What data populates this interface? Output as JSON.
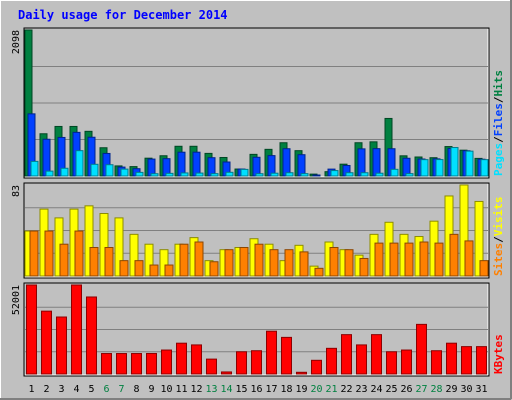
{
  "chart_data": {
    "type": "bar",
    "title": "Daily usage for December 2014",
    "categories": [
      "1",
      "2",
      "3",
      "4",
      "5",
      "6",
      "7",
      "8",
      "9",
      "10",
      "11",
      "12",
      "13",
      "14",
      "15",
      "16",
      "17",
      "18",
      "19",
      "20",
      "21",
      "22",
      "23",
      "24",
      "25",
      "26",
      "27",
      "28",
      "29",
      "30",
      "31"
    ],
    "weekend_days": [
      "6",
      "7",
      "13",
      "14",
      "20",
      "21",
      "27",
      "28"
    ],
    "panels": [
      {
        "id": "hits-files-pages",
        "ymax_label": "2098",
        "ymax": 2098,
        "series": [
          {
            "name": "Hits",
            "color": "#008040",
            "values": [
              2098,
              607,
              712,
              712,
              642,
              406,
              145,
              135,
              256,
              291,
              427,
              427,
              325,
              266,
              100,
              311,
              383,
              478,
              364,
              27,
              62,
              170,
              478,
              491,
              827,
              290,
              273,
              263,
              423,
              371,
              253
            ]
          },
          {
            "name": "Files",
            "color": "#0040ff",
            "values": [
              893,
              528,
              554,
              627,
              557,
              324,
              128,
              105,
              243,
              249,
              342,
              342,
              263,
              201,
              100,
              269,
              293,
              392,
              306,
              14,
              99,
              151,
              390,
              393,
              392,
              255,
              244,
              246,
              395,
              363,
              241
            ]
          },
          {
            "name": "Pages",
            "color": "#00e0ff",
            "values": [
              210,
              70,
              111,
              364,
              168,
              162,
              99,
              52,
              33,
              38,
              44,
              42,
              34,
              53,
              95,
              33,
              40,
              47,
              34,
              0,
              78,
              47,
              47,
              40,
              96,
              34,
              235,
              236,
              409,
              357,
              235
            ]
          }
        ]
      },
      {
        "id": "visits-sites",
        "ymax_label": "83",
        "ymax": 83,
        "series": [
          {
            "name": "Visits",
            "color": "#ffff00",
            "values": [
              41,
              61,
              53,
              61,
              64,
              57,
              53,
              38,
              29,
              24,
              29,
              35,
              14,
              24,
              26,
              34,
              29,
              14,
              28,
              9,
              31,
              24,
              19,
              38,
              49,
              38,
              36,
              50,
              73,
              83,
              68
            ]
          },
          {
            "name": "Sites",
            "color": "#ff8000",
            "values": [
              41,
              41,
              29,
              41,
              26,
              26,
              14,
              14,
              10,
              10,
              29,
              31,
              13,
              24,
              26,
              29,
              24,
              24,
              22,
              7,
              26,
              24,
              16,
              30,
              30,
              30,
              31,
              30,
              38,
              32,
              14
            ]
          }
        ]
      },
      {
        "id": "kbytes",
        "ymax_label": "52001",
        "ymax": 52001,
        "series": [
          {
            "name": "KBytes",
            "color": "#ff0000",
            "values": [
              52001,
              36720,
              33300,
              52001,
              45000,
              11960,
              11960,
              11960,
              12000,
              14000,
              18000,
              17000,
              8700,
              1200,
              13000,
              13600,
              25000,
              21400,
              1000,
              8000,
              15000,
              23000,
              17000,
              23000,
              13000,
              14000,
              29000,
              13600,
              18000,
              16000,
              16000
            ]
          }
        ]
      }
    ],
    "legend": [
      {
        "panel": "hits-files-pages",
        "placement": "right",
        "items": [
          {
            "text": "Pages",
            "color": "#00e0ff"
          },
          {
            "text": "/",
            "color": "#000000"
          },
          {
            "text": "Files",
            "color": "#0040ff"
          },
          {
            "text": "/",
            "color": "#000000"
          },
          {
            "text": "Hits",
            "color": "#008040"
          }
        ]
      },
      {
        "panel": "visits-sites",
        "placement": "right",
        "items": [
          {
            "text": "Sites",
            "color": "#ff8000"
          },
          {
            "text": "/",
            "color": "#000000"
          },
          {
            "text": "Visits",
            "color": "#ffff00"
          }
        ]
      },
      {
        "panel": "kbytes",
        "placement": "right",
        "items": [
          {
            "text": "KBytes",
            "color": "#ff0000"
          }
        ]
      }
    ],
    "colors": {
      "background": "#c0c0c0",
      "title": "#0000ff",
      "weekday_label": "#000000",
      "weekend_label": "#008040",
      "grid": "#808080"
    }
  }
}
